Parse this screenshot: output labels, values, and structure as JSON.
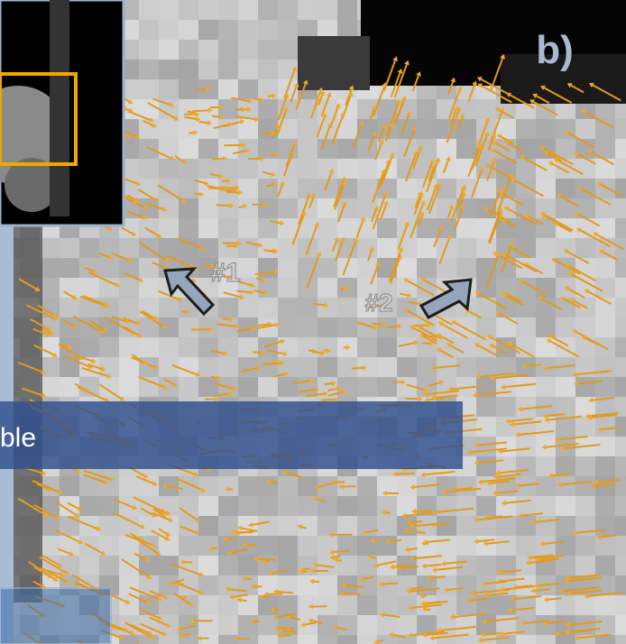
{
  "panel_label": "b)",
  "markers": [
    "#1",
    "#2"
  ],
  "banner_text": "ble"
}
